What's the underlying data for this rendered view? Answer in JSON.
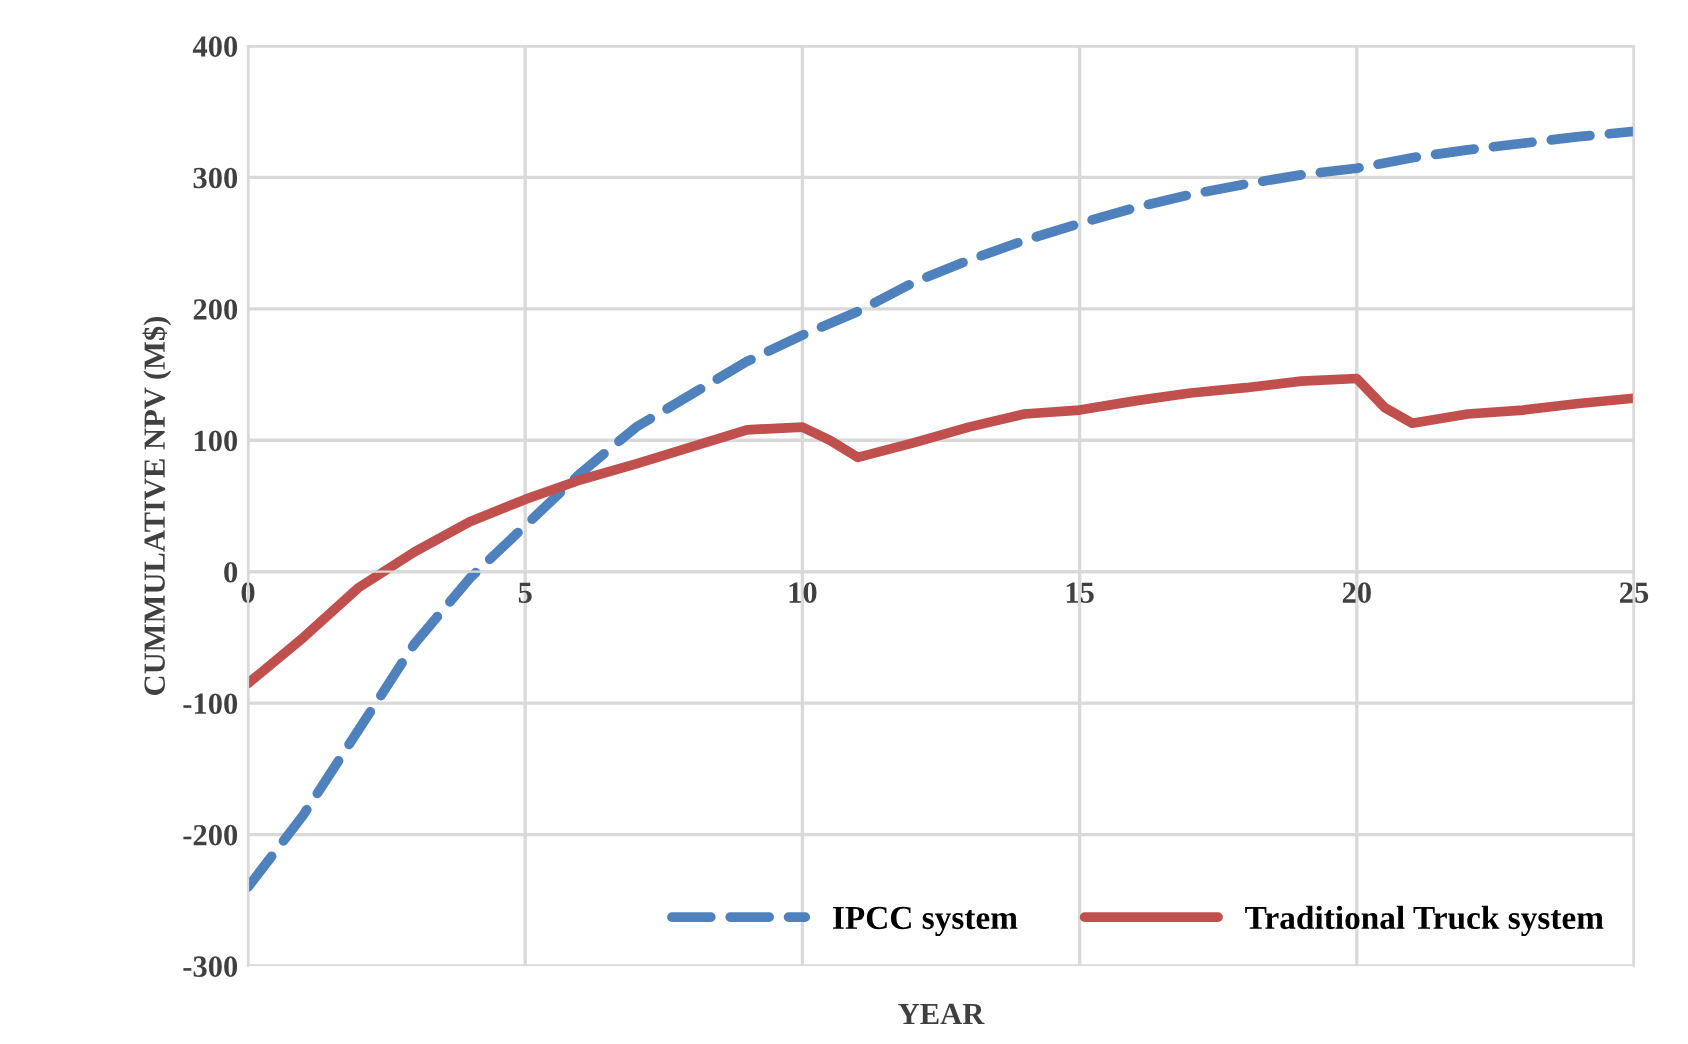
{
  "chart_data": {
    "type": "line",
    "xlabel": "YEAR",
    "ylabel": "CUMMULATIVE NPV (M$)",
    "xlim": [
      0,
      25
    ],
    "xticks": [
      0,
      5,
      10,
      15,
      20,
      25
    ],
    "ylim": [
      -300,
      400
    ],
    "yticks": [
      -300,
      -200,
      -100,
      0,
      100,
      200,
      300,
      400
    ],
    "grid": true,
    "legend": "bottom right",
    "marker": "none",
    "series": [
      {
        "name": "IPCC system",
        "color": "#4f81bd",
        "line_style": "dashed",
        "x": [
          0,
          1,
          2,
          3,
          4,
          5,
          6,
          7,
          8,
          9,
          10,
          11,
          12,
          13,
          14,
          15,
          16,
          17,
          18,
          19,
          20,
          21,
          22,
          23,
          24,
          25
        ],
        "values": [
          -240,
          -185,
          -120,
          -55,
          -5,
          35,
          75,
          110,
          135,
          160,
          180,
          198,
          220,
          237,
          252,
          265,
          277,
          287,
          295,
          302,
          307,
          315,
          321,
          326,
          331,
          335
        ]
      },
      {
        "name": "Traditional Truck system",
        "color": "#c0504d",
        "line_style": "solid",
        "x": [
          0,
          1,
          2,
          3,
          4,
          5,
          6,
          7,
          8,
          9,
          10,
          10.5,
          11,
          12,
          13,
          14,
          15,
          16,
          17,
          18,
          19,
          20,
          20.5,
          21,
          22,
          23,
          24,
          25
        ],
        "values": [
          -85,
          -50,
          -12,
          15,
          38,
          55,
          70,
          82,
          95,
          108,
          110,
          100,
          87,
          98,
          110,
          120,
          123,
          130,
          136,
          140,
          145,
          147,
          125,
          113,
          120,
          123,
          128,
          132
        ]
      }
    ]
  }
}
